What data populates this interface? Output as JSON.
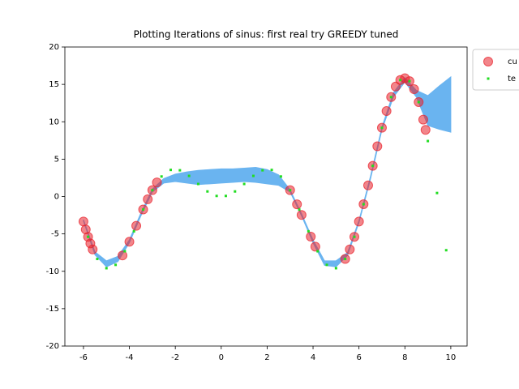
{
  "chart_data": {
    "type": "scatter",
    "title": "Plotting Iterations of sinus: first real try GREEDY tuned",
    "xlim": [
      -6.81,
      10.71
    ],
    "ylim": [
      -20,
      20
    ],
    "xticks": [
      -6,
      -4,
      -2,
      0,
      2,
      4,
      6,
      8,
      10
    ],
    "yticks": [
      -20,
      -15,
      -10,
      -5,
      0,
      5,
      10,
      15,
      20
    ],
    "legend": "outside right",
    "band": {
      "color": "#6ab4f0",
      "x": [
        -6,
        -5.5,
        -5,
        -4.5,
        -4,
        -3.5,
        -3,
        -2.5,
        -2,
        -1.5,
        -1,
        -0.5,
        0,
        0.5,
        1,
        1.5,
        2,
        2.5,
        3,
        3.5,
        4,
        4.5,
        5,
        5.5,
        6,
        6.5,
        7,
        7.5,
        8,
        8.5,
        9,
        9.5,
        10
      ],
      "lower": [
        -3.3,
        -7.8,
        -9.4,
        -8.7,
        -6.2,
        -2.6,
        0.6,
        1.8,
        2.0,
        1.8,
        1.6,
        1.7,
        1.8,
        1.9,
        2.0,
        1.9,
        1.7,
        1.5,
        0.6,
        -2.6,
        -6.2,
        -9.2,
        -9.4,
        -7.9,
        -3.5,
        2.3,
        8.9,
        13.3,
        15.3,
        13.3,
        9.5,
        9.0,
        8.6
      ],
      "upper": [
        -3.1,
        -7.4,
        -8.6,
        -8.0,
        -5.8,
        -2.2,
        1.0,
        2.4,
        3.0,
        3.3,
        3.5,
        3.6,
        3.7,
        3.7,
        3.8,
        3.9,
        3.6,
        2.9,
        0.9,
        -2.3,
        -5.8,
        -8.6,
        -8.6,
        -7.5,
        -3.2,
        2.7,
        9.3,
        13.9,
        15.9,
        14.2,
        13.5,
        14.8,
        16.0
      ]
    },
    "series": [
      {
        "name": "cu",
        "color": "#e8202a",
        "x": [
          -6.0,
          -5.9,
          -5.8,
          -5.7,
          -5.6,
          -4.3,
          -4.0,
          -3.7,
          -3.4,
          -3.2,
          -3.0,
          -2.8,
          3.0,
          3.3,
          3.5,
          3.9,
          4.1,
          5.4,
          5.6,
          5.8,
          6.0,
          6.2,
          6.4,
          6.6,
          6.8,
          7.0,
          7.2,
          7.4,
          7.6,
          7.8,
          8.0,
          8.2,
          8.4,
          8.6,
          8.8,
          8.9
        ],
        "values": [
          -3.35,
          -4.41,
          -5.39,
          -6.28,
          -7.07,
          -7.88,
          -6.05,
          -3.92,
          -1.74,
          -0.37,
          0.85,
          1.88,
          0.85,
          -1.04,
          -2.46,
          -5.36,
          -6.71,
          -8.35,
          -7.07,
          -5.39,
          -3.35,
          -1.03,
          1.49,
          4.11,
          6.72,
          9.2,
          11.43,
          13.3,
          14.71,
          15.58,
          15.83,
          15.43,
          14.36,
          12.63,
          10.29,
          8.92
        ]
      },
      {
        "name": "te",
        "color": "#22dd22",
        "x": [
          -5.8,
          -5.4,
          -5.0,
          -4.6,
          -4.2,
          -3.8,
          -3.4,
          -3.0,
          -2.6,
          -2.2,
          -1.8,
          -1.4,
          -1.0,
          -0.6,
          -0.2,
          0.2,
          0.6,
          1.0,
          1.4,
          1.8,
          2.2,
          2.6,
          3.0,
          3.4,
          3.8,
          4.2,
          4.6,
          5.0,
          5.4,
          5.8,
          6.2,
          6.6,
          7.0,
          7.4,
          7.8,
          8.2,
          8.6,
          9.0,
          9.4,
          9.8
        ],
        "values": [
          -5.39,
          -8.35,
          -9.59,
          -9.14,
          -7.32,
          -4.65,
          -1.74,
          0.85,
          2.68,
          3.56,
          3.51,
          2.76,
          1.68,
          0.68,
          0.08,
          0.08,
          0.68,
          1.68,
          2.76,
          3.51,
          3.56,
          2.68,
          0.85,
          -1.74,
          -4.65,
          -7.32,
          -9.14,
          -9.59,
          -8.35,
          -5.39,
          -1.03,
          4.11,
          9.2,
          13.3,
          15.58,
          15.43,
          12.63,
          7.42,
          0.47,
          -7.18
        ]
      }
    ]
  }
}
